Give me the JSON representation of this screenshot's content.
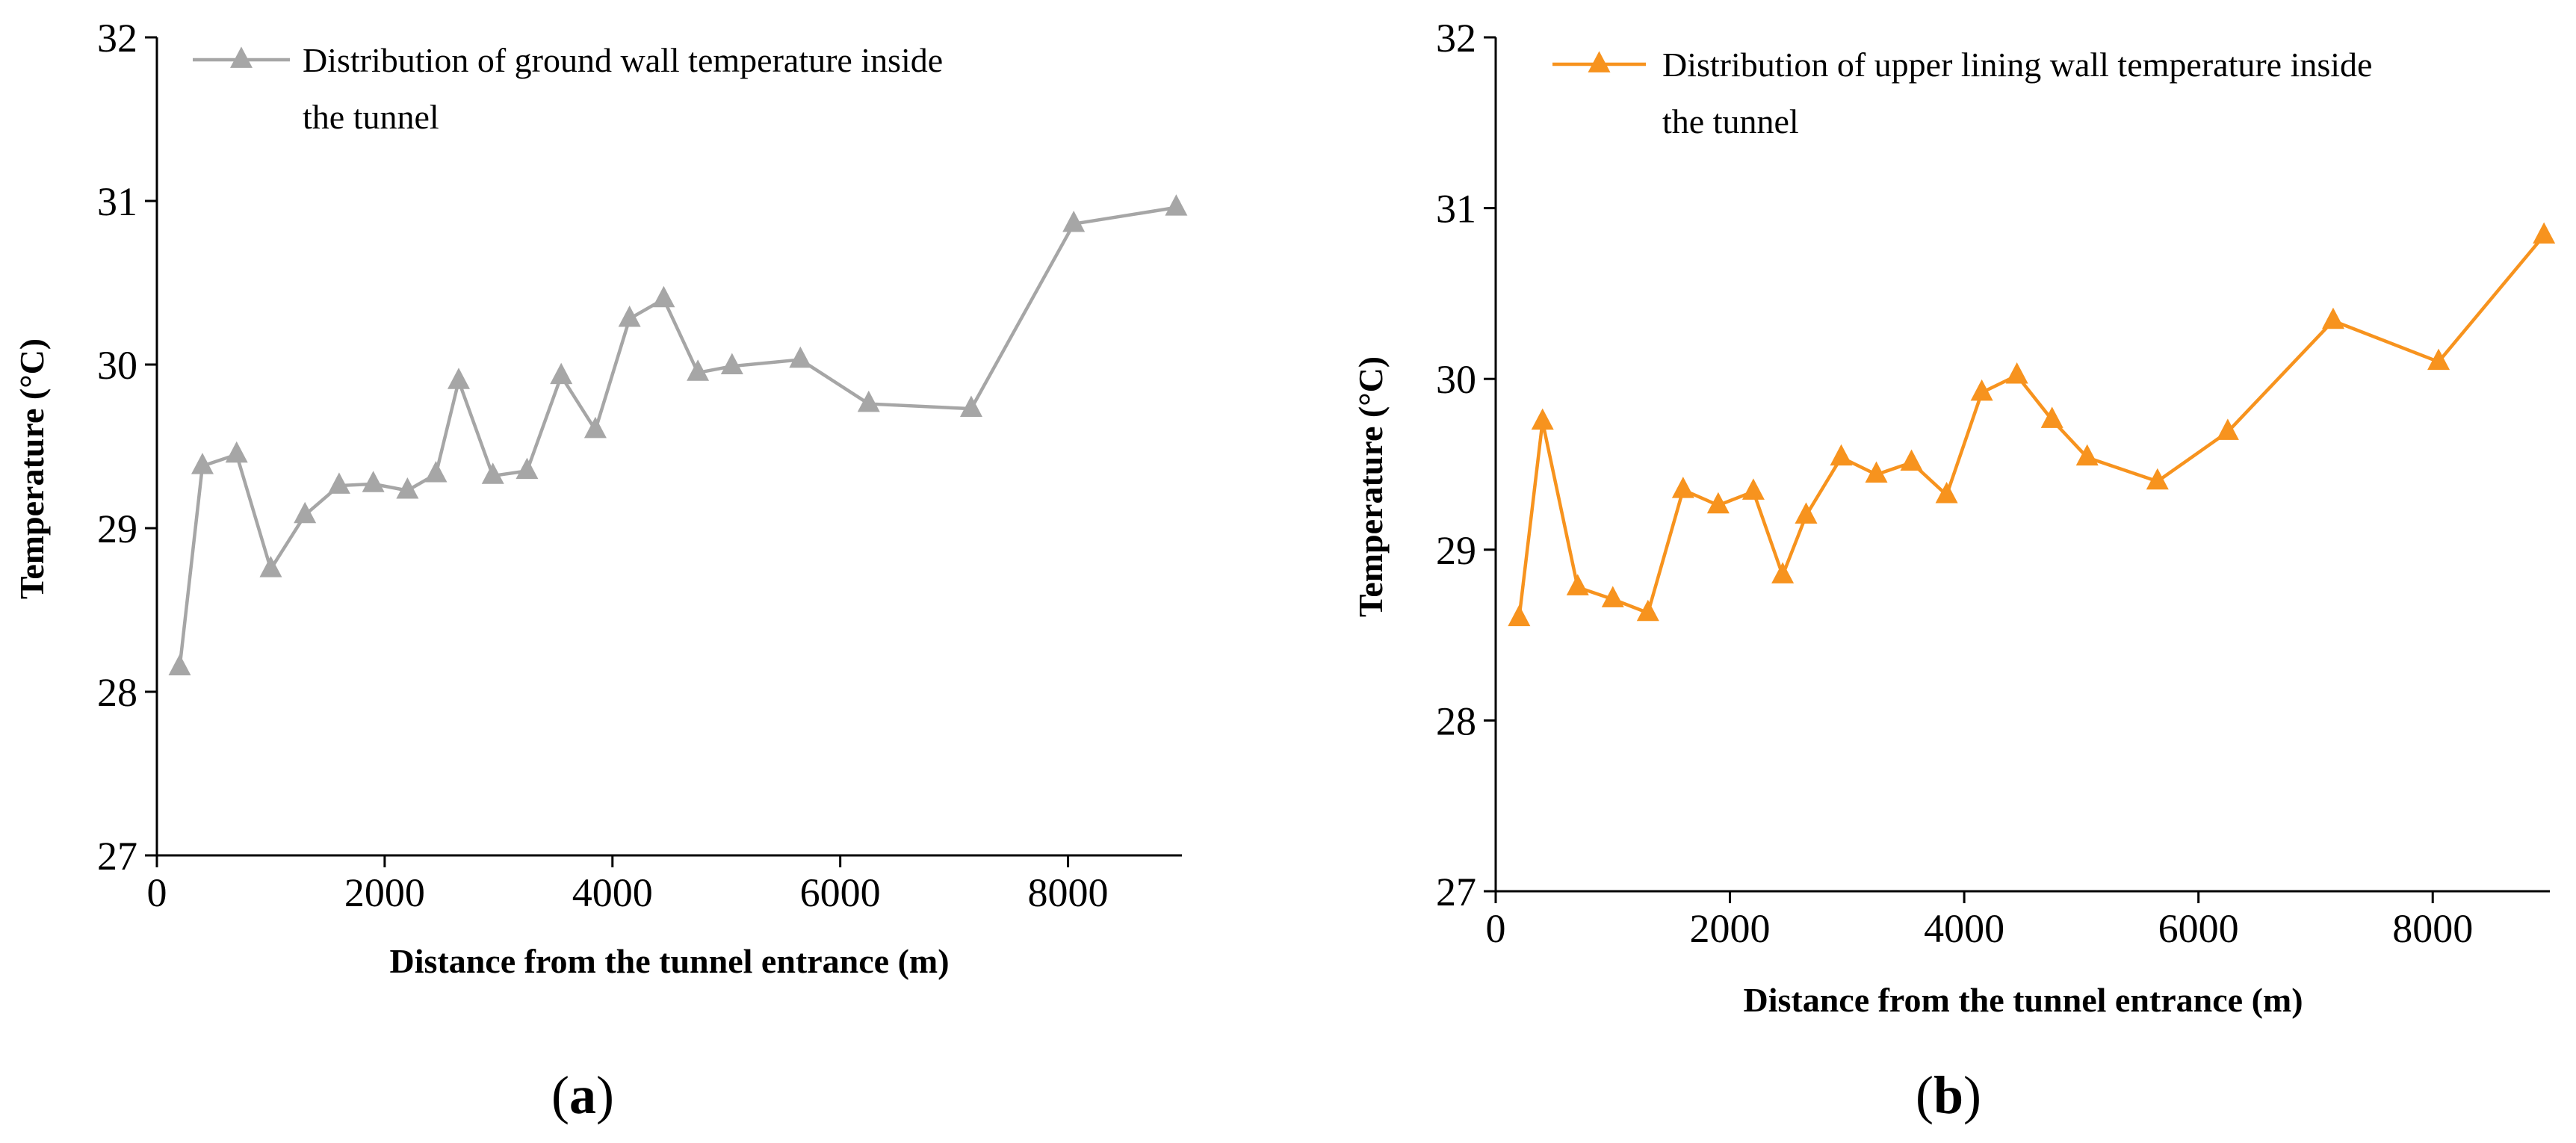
{
  "chart_data": [
    {
      "type": "line",
      "panel_label_prefix": "(",
      "panel_label_letter": "a",
      "panel_label_suffix": ")",
      "xlabel": "Distance from the tunnel entrance (m)",
      "ylabel": "Temperature  (°C)",
      "xlim": [
        0,
        9000
      ],
      "ylim": [
        27,
        32
      ],
      "xticks": [
        0,
        2000,
        4000,
        6000,
        8000
      ],
      "yticks": [
        27,
        28,
        29,
        30,
        31,
        32
      ],
      "xtick_labels": [
        "0",
        "2000",
        "4000",
        "6000",
        "8000"
      ],
      "ytick_labels": [
        "27",
        "28",
        "29",
        "30",
        "31",
        "32"
      ],
      "legend_position": "top-left",
      "series": [
        {
          "name": "Distribution of ground wall temperature inside the tunnel",
          "legend_lines": [
            "Distribution of ground wall temperature inside",
            "the tunnel"
          ],
          "color": "#a6a6a6",
          "marker": "triangle",
          "x": [
            200,
            400,
            700,
            1000,
            1300,
            1600,
            1900,
            2200,
            2450,
            2650,
            2950,
            3250,
            3550,
            3850,
            4150,
            4450,
            4750,
            5050,
            5650,
            6250,
            7150,
            8050,
            8950
          ],
          "y": [
            28.15,
            29.38,
            29.45,
            28.75,
            29.08,
            29.26,
            29.27,
            29.23,
            29.33,
            29.9,
            29.32,
            29.35,
            29.93,
            29.6,
            30.28,
            30.4,
            29.95,
            29.99,
            30.03,
            29.76,
            29.73,
            30.86,
            30.96
          ]
        }
      ]
    },
    {
      "type": "line",
      "panel_label_prefix": "(",
      "panel_label_letter": "b",
      "panel_label_suffix": ")",
      "xlabel": "Distance from the tunnel entrance (m)",
      "ylabel": "Temperature  (°C)",
      "xlim": [
        0,
        9000
      ],
      "ylim": [
        27,
        32
      ],
      "xticks": [
        0,
        2000,
        4000,
        6000,
        8000
      ],
      "yticks": [
        27,
        28,
        29,
        30,
        31,
        32
      ],
      "xtick_labels": [
        "0",
        "2000",
        "4000",
        "6000",
        "8000"
      ],
      "ytick_labels": [
        "27",
        "28",
        "29",
        "30",
        "31",
        "32"
      ],
      "legend_position": "top-left",
      "series": [
        {
          "name": "Distribution of upper lining wall temperature inside the tunnel",
          "legend_lines": [
            "Distribution of upper lining wall temperature inside",
            "the tunnel"
          ],
          "color": "#f7931e",
          "marker": "triangle",
          "x": [
            200,
            400,
            700,
            1000,
            1300,
            1600,
            1900,
            2200,
            2450,
            2650,
            2950,
            3250,
            3550,
            3850,
            4150,
            4450,
            4750,
            5050,
            5650,
            6250,
            7150,
            8050,
            8950
          ],
          "y": [
            28.6,
            29.75,
            28.78,
            28.71,
            28.63,
            29.35,
            29.26,
            29.34,
            28.85,
            29.2,
            29.54,
            29.44,
            29.51,
            29.32,
            29.92,
            30.02,
            29.76,
            29.54,
            29.4,
            29.69,
            30.34,
            30.1,
            30.84
          ]
        }
      ]
    }
  ]
}
